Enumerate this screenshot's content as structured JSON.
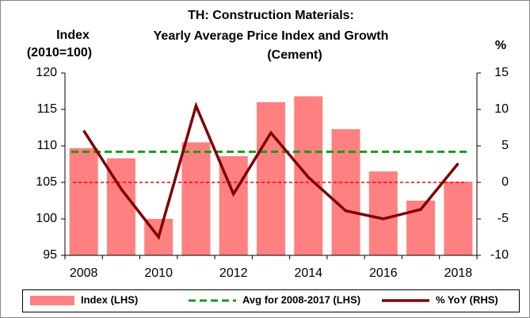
{
  "chart_data": {
    "type": "bar",
    "title": [
      "TH: Construction Materials:",
      "Yearly Average Price Index and Growth",
      "(Cement)"
    ],
    "y_label": [
      "Index",
      "(2010=100)"
    ],
    "y2_label": "%",
    "categories": [
      "2008",
      null,
      "2010",
      null,
      "2012",
      null,
      "2014",
      null,
      "2016",
      null,
      "2018"
    ],
    "series": [
      {
        "name": "Index (LHS)",
        "color": "#ff8080",
        "values": [
          109.7,
          108.3,
          100.0,
          110.5,
          108.6,
          116.0,
          116.8,
          112.3,
          106.5,
          102.5,
          105.1
        ]
      },
      {
        "name": "% YoY (RHS)",
        "color": "#800000",
        "axis": "y2",
        "values": [
          7.1,
          -0.9,
          -7.5,
          10.5,
          -1.6,
          6.8,
          0.7,
          -3.9,
          -5.0,
          -3.7,
          2.6
        ]
      }
    ],
    "average": {
      "name": "Avg for 2008-2017 (LHS)",
      "color": "#1a9a1a",
      "value": 109.2
    },
    "zero_line_color": "#ff0000",
    "ylim": [
      95,
      120
    ],
    "yticks": [
      95,
      100,
      105,
      110,
      115,
      120
    ],
    "y2lim": [
      -10,
      15
    ],
    "y2ticks": [
      -10,
      -5,
      0,
      5,
      10,
      15
    ],
    "legend": "bottom"
  }
}
